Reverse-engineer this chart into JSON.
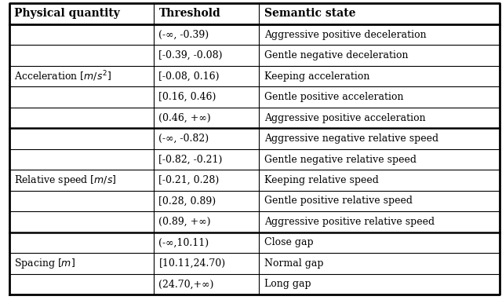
{
  "col_headers": [
    "Physical quantity",
    "Threshold",
    "Semantic state"
  ],
  "group_labels": [
    "Acceleration [$m/s^2$]",
    "Relative speed [$m/s$]",
    "Spacing [$m$]"
  ],
  "group_ranges": [
    [
      0,
      4
    ],
    [
      5,
      9
    ],
    [
      10,
      12
    ]
  ],
  "group_separators_after": [
    4,
    9
  ],
  "rows": [
    [
      "(-∞, -0.39)",
      "Aggressive positive deceleration"
    ],
    [
      "[-0.39, -0.08)",
      "Gentle negative deceleration"
    ],
    [
      "[-0.08, 0.16)",
      "Keeping acceleration"
    ],
    [
      "[0.16, 0.46)",
      "Gentle positive acceleration"
    ],
    [
      "(0.46, +∞)",
      "Aggressive positive acceleration"
    ],
    [
      "(-∞, -0.82)",
      "Aggressive negative relative speed"
    ],
    [
      "[-0.82, -0.21)",
      "Gentle negative relative speed"
    ],
    [
      "[-0.21, 0.28)",
      "Keeping relative speed"
    ],
    [
      "[0.28, 0.89)",
      "Gentle positive relative speed"
    ],
    [
      "(0.89, +∞)",
      "Aggressive positive relative speed"
    ],
    [
      "(-∞,10.11)",
      "Close gap"
    ],
    [
      "[10.11,24.70)",
      "Normal gap"
    ],
    [
      "(24.70,+∞)",
      "Long gap"
    ]
  ],
  "lw_outer": 2.0,
  "lw_inner": 0.8,
  "lw_group": 1.8,
  "font_size": 9.0,
  "header_font_size": 10.0,
  "bg_color": "#ffffff",
  "line_color": "#000000",
  "fig_width": 6.4,
  "fig_height": 3.82,
  "dpi": 100
}
